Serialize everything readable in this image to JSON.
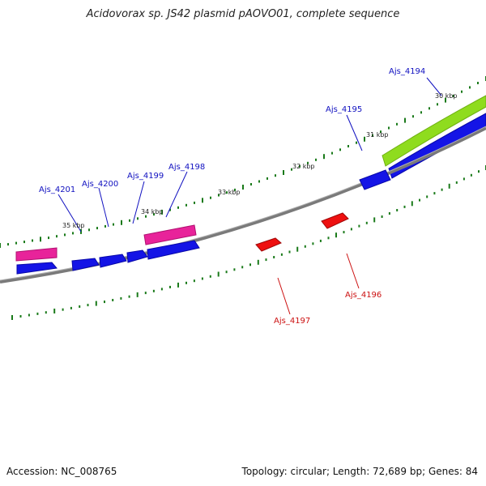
{
  "title": "Acidovorax sp. JS42 plasmid pAOVO01, complete sequence",
  "footer": {
    "accession": "Accession: NC_008765",
    "summary": "Topology: circular; Length: 72,689 bp; Genes: 84"
  },
  "colors": {
    "backbone": "#8c8c8c",
    "forward_gene": "#0000ee",
    "reverse_gene": "#ee0000",
    "magenta_feature": "#e8239a",
    "green_feature": "#8fdc1e",
    "tick": "#1a7a1a",
    "forward_label": "#1010c0",
    "reverse_label": "#cc1010"
  },
  "kbp_labels": [
    "30 kbp",
    "31 kbp",
    "32 kbp",
    "33 kbp",
    "34 kbp",
    "35 kbp"
  ],
  "gene_labels": [
    {
      "id": "Ajs_4194",
      "strand": "forward"
    },
    {
      "id": "Ajs_4195",
      "strand": "forward"
    },
    {
      "id": "Ajs_4196",
      "strand": "reverse"
    },
    {
      "id": "Ajs_4197",
      "strand": "reverse"
    },
    {
      "id": "Ajs_4198",
      "strand": "forward"
    },
    {
      "id": "Ajs_4199",
      "strand": "forward"
    },
    {
      "id": "Ajs_4200",
      "strand": "forward"
    },
    {
      "id": "Ajs_4201",
      "strand": "forward"
    }
  ]
}
